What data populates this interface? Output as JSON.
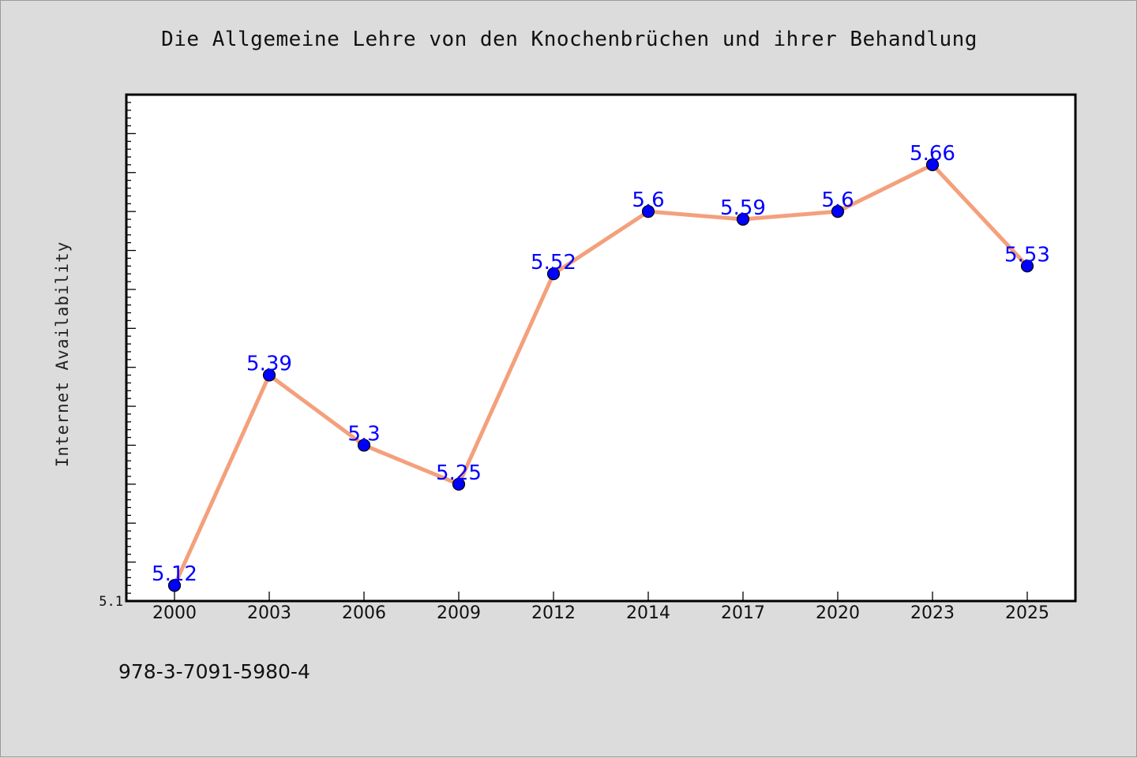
{
  "colors": {
    "background": "#dcdcdc",
    "plot_background": "#ffffff",
    "line": "#f4a07c",
    "marker": "#0000ff",
    "data_label": "#0000ff"
  },
  "footer": {
    "isbn": "978-3-7091-5980-4"
  },
  "chart_data": {
    "type": "line",
    "title": "Die Allgemeine Lehre von den Knochenbrüchen und ihrer Behandlung",
    "xlabel": "",
    "ylabel": "Internet Availability",
    "categories": [
      "2000",
      "2003",
      "2006",
      "2009",
      "2012",
      "2014",
      "2017",
      "2020",
      "2023",
      "2025"
    ],
    "series": [
      {
        "values": [
          5.12,
          5.39,
          5.3,
          5.25,
          5.52,
          5.6,
          5.59,
          5.6,
          5.66,
          5.53
        ],
        "data_labels": [
          "5.12",
          "5.39",
          "5.3",
          "5.25",
          "5.52",
          "5.6",
          "5.59",
          "5.6",
          "5.66",
          "5.53"
        ]
      }
    ],
    "ylim": [
      5.1,
      5.75
    ],
    "y_tick_labels": [
      {
        "value": 5.1,
        "label": "5.1"
      }
    ],
    "y_minor_step": 0.01,
    "y_major_step": 0.05,
    "grid": false,
    "legend": "none"
  }
}
